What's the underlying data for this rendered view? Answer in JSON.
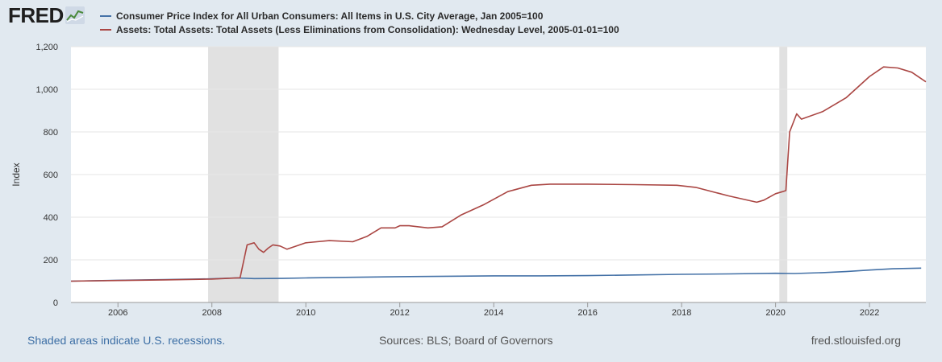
{
  "brand": {
    "logo_text": "FRED"
  },
  "footer": {
    "recession_note": "Shaded areas indicate U.S. recessions.",
    "sources": "Sources: BLS; Board of Governors",
    "site": "fred.stlouisfed.org"
  },
  "colors": {
    "cpi": "#4572a7",
    "assets": "#aa4643",
    "recession": "#e1e1e1",
    "grid": "#e6e6e6"
  },
  "chart_data": {
    "type": "line",
    "ylabel": "Index",
    "ylim": [
      0,
      1200
    ],
    "xlim": [
      2005.0,
      2023.2
    ],
    "grid": true,
    "legend_position": "top-left",
    "x_ticks": [
      2006,
      2008,
      2010,
      2012,
      2014,
      2016,
      2018,
      2020,
      2022
    ],
    "y_ticks": [
      0,
      200,
      400,
      600,
      800,
      1000,
      1200
    ],
    "y_tick_labels": [
      "0",
      "200",
      "400",
      "600",
      "800",
      "1,000",
      "1,200"
    ],
    "recessions": [
      [
        2007.92,
        2009.42
      ],
      [
        2020.08,
        2020.25
      ]
    ],
    "series": [
      {
        "name": "Consumer Price Index for All Urban Consumers: All Items in U.S. City Average, Jan 2005=100",
        "x": [
          2005.0,
          2006.0,
          2007.0,
          2008.0,
          2008.5,
          2008.9,
          2009.5,
          2010.0,
          2011.0,
          2012.0,
          2013.0,
          2014.0,
          2015.0,
          2016.0,
          2017.0,
          2018.0,
          2019.0,
          2020.0,
          2020.4,
          2021.0,
          2021.5,
          2022.0,
          2022.5,
          2023.1
        ],
        "values": [
          100,
          104,
          107,
          111,
          115,
          112,
          113,
          115,
          118,
          121,
          123,
          125,
          125,
          126,
          129,
          132,
          134,
          137,
          136,
          140,
          145,
          152,
          158,
          161
        ]
      },
      {
        "name": "Assets: Total Assets: Total Assets (Less Eliminations from Consolidation): Wednesday Level, 2005-01-01=100",
        "x": [
          2005.0,
          2006.0,
          2007.0,
          2008.0,
          2008.6,
          2008.75,
          2008.9,
          2009.0,
          2009.1,
          2009.2,
          2009.3,
          2009.45,
          2009.6,
          2009.8,
          2010.0,
          2010.5,
          2011.0,
          2011.3,
          2011.6,
          2011.9,
          2012.0,
          2012.2,
          2012.6,
          2012.9,
          2013.3,
          2013.8,
          2014.3,
          2014.8,
          2015.2,
          2016.0,
          2017.0,
          2017.9,
          2018.3,
          2019.0,
          2019.6,
          2019.75,
          2020.0,
          2020.15,
          2020.22,
          2020.3,
          2020.45,
          2020.55,
          2021.0,
          2021.5,
          2022.0,
          2022.3,
          2022.6,
          2022.9,
          2023.2
        ],
        "values": [
          100,
          103,
          106,
          110,
          116,
          270,
          280,
          250,
          235,
          255,
          270,
          265,
          250,
          265,
          280,
          290,
          285,
          310,
          350,
          350,
          360,
          360,
          350,
          355,
          410,
          460,
          520,
          550,
          555,
          555,
          553,
          550,
          540,
          500,
          470,
          480,
          510,
          520,
          525,
          800,
          885,
          860,
          895,
          960,
          1060,
          1105,
          1100,
          1080,
          1035
        ]
      }
    ]
  }
}
